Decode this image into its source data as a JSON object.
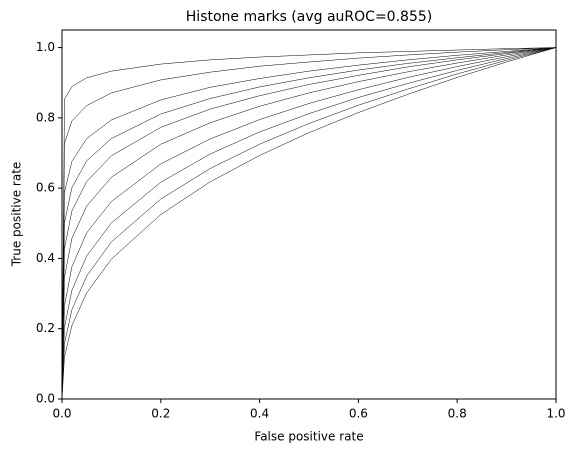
{
  "chart_data": {
    "type": "line",
    "title": "Histone marks (avg auROC=0.855)",
    "x_label": "False positive rate",
    "y_label": "True positive rate",
    "color": "#000000",
    "x": [
      0,
      0.005,
      0.02,
      0.05,
      0.1,
      0.2,
      0.3,
      0.4,
      0.5,
      0.6,
      0.7,
      0.8,
      0.9,
      1
    ],
    "series": [
      {
        "values": [
          0,
          0.853,
          0.889,
          0.914,
          0.933,
          0.953,
          0.965,
          0.973,
          0.979,
          0.985,
          0.989,
          0.993,
          0.997,
          1
        ]
      },
      {
        "values": [
          0,
          0.728,
          0.791,
          0.835,
          0.871,
          0.908,
          0.93,
          0.947,
          0.959,
          0.97,
          0.979,
          0.987,
          0.994,
          1
        ]
      },
      {
        "values": [
          0,
          0.589,
          0.676,
          0.741,
          0.794,
          0.851,
          0.887,
          0.912,
          0.933,
          0.95,
          0.965,
          0.978,
          0.989,
          1
        ]
      },
      {
        "values": [
          0,
          0.502,
          0.601,
          0.678,
          0.741,
          0.811,
          0.855,
          0.888,
          0.914,
          0.936,
          0.955,
          0.971,
          0.986,
          1
        ]
      },
      {
        "values": [
          0,
          0.428,
          0.535,
          0.619,
          0.692,
          0.773,
          0.825,
          0.863,
          0.895,
          0.921,
          0.945,
          0.965,
          0.983,
          1
        ]
      },
      {
        "values": [
          0,
          0.347,
          0.457,
          0.549,
          0.631,
          0.725,
          0.786,
          0.833,
          0.871,
          0.903,
          0.931,
          0.956,
          0.979,
          1
        ]
      },
      {
        "values": [
          0,
          0.266,
          0.376,
          0.473,
          0.562,
          0.669,
          0.74,
          0.795,
          0.841,
          0.88,
          0.915,
          0.946,
          0.974,
          1
        ]
      },
      {
        "values": [
          0,
          0.204,
          0.309,
          0.407,
          0.501,
          0.617,
          0.697,
          0.76,
          0.812,
          0.858,
          0.898,
          0.935,
          0.969,
          1
        ]
      },
      {
        "values": [
          0,
          0.157,
          0.254,
          0.35,
          0.447,
          0.569,
          0.656,
          0.725,
          0.784,
          0.836,
          0.882,
          0.925,
          0.964,
          1
        ]
      },
      {
        "values": [
          0,
          0.12,
          0.209,
          0.302,
          0.398,
          0.525,
          0.618,
          0.693,
          0.758,
          0.815,
          0.867,
          0.915,
          0.959,
          1
        ]
      }
    ],
    "xlim": [
      0,
      1
    ],
    "ylim": [
      0,
      1.05
    ],
    "xticks": [
      {
        "value": 0,
        "label": "0.0"
      },
      0.2,
      0.4,
      0.6,
      0.8,
      {
        "value": 1,
        "label": "1.0"
      }
    ],
    "yticks": [
      {
        "value": 0,
        "label": "0.0"
      },
      0.2,
      0.4,
      0.6,
      0.8,
      {
        "value": 1,
        "label": "1.0"
      }
    ],
    "grid": false
  }
}
